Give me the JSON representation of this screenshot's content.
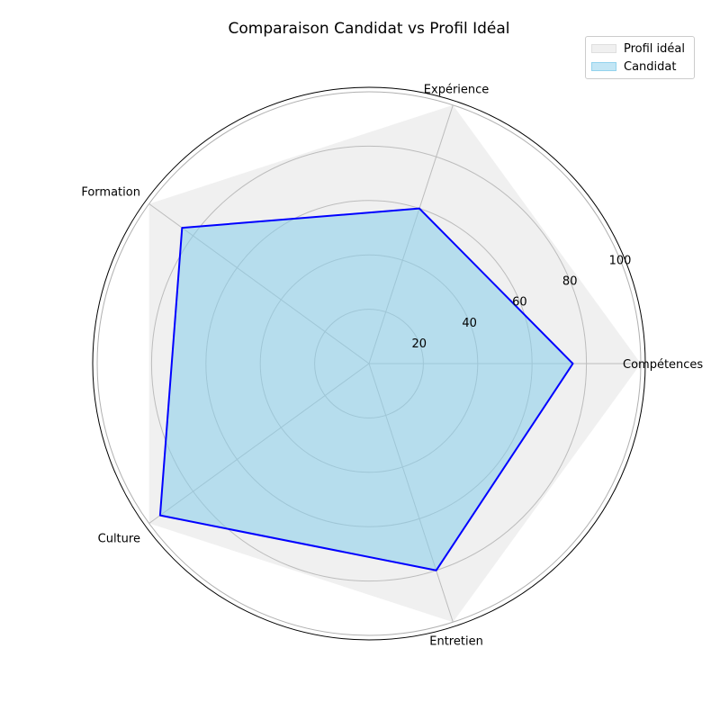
{
  "chart_data": {
    "type": "radar",
    "title": "Comparaison Candidat vs Profil Idéal",
    "categories": [
      "Compétences",
      "Expérience",
      "Formation",
      "Culture",
      "Entretien"
    ],
    "rlim": [
      0,
      100
    ],
    "rticks": [
      20,
      40,
      60,
      80,
      100
    ],
    "grid": true,
    "legend_position": "top-right",
    "series": [
      {
        "name": "Profil idéal",
        "values": [
          100,
          100,
          100,
          100,
          100
        ],
        "fill": "#d3d3d3",
        "line": "none"
      },
      {
        "name": "Candidat",
        "values": [
          75,
          60,
          85,
          95,
          80
        ],
        "fill": "#87ceeb",
        "line": "#0000ff"
      }
    ]
  }
}
